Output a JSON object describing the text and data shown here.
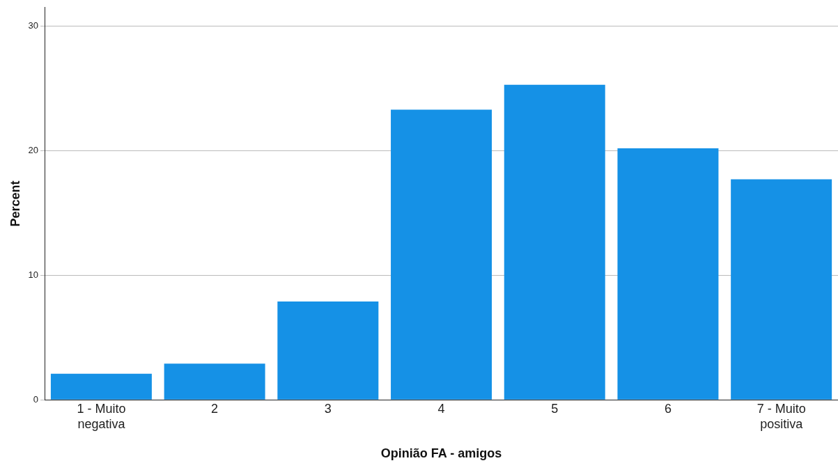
{
  "chart_data": {
    "type": "bar",
    "xlabel": "Opinião FA - amigos",
    "ylabel": "Percent",
    "categories": [
      "1 - Muito negativa",
      "2",
      "3",
      "4",
      "5",
      "6",
      "7 - Muito positiva"
    ],
    "values": [
      2.1,
      2.9,
      7.9,
      23.3,
      25.3,
      20.2,
      17.7
    ],
    "color": "#1591e6",
    "ylim": [
      0,
      31.5
    ],
    "yticks": [
      0,
      10,
      20,
      30
    ],
    "grid": "y",
    "legend": false
  }
}
